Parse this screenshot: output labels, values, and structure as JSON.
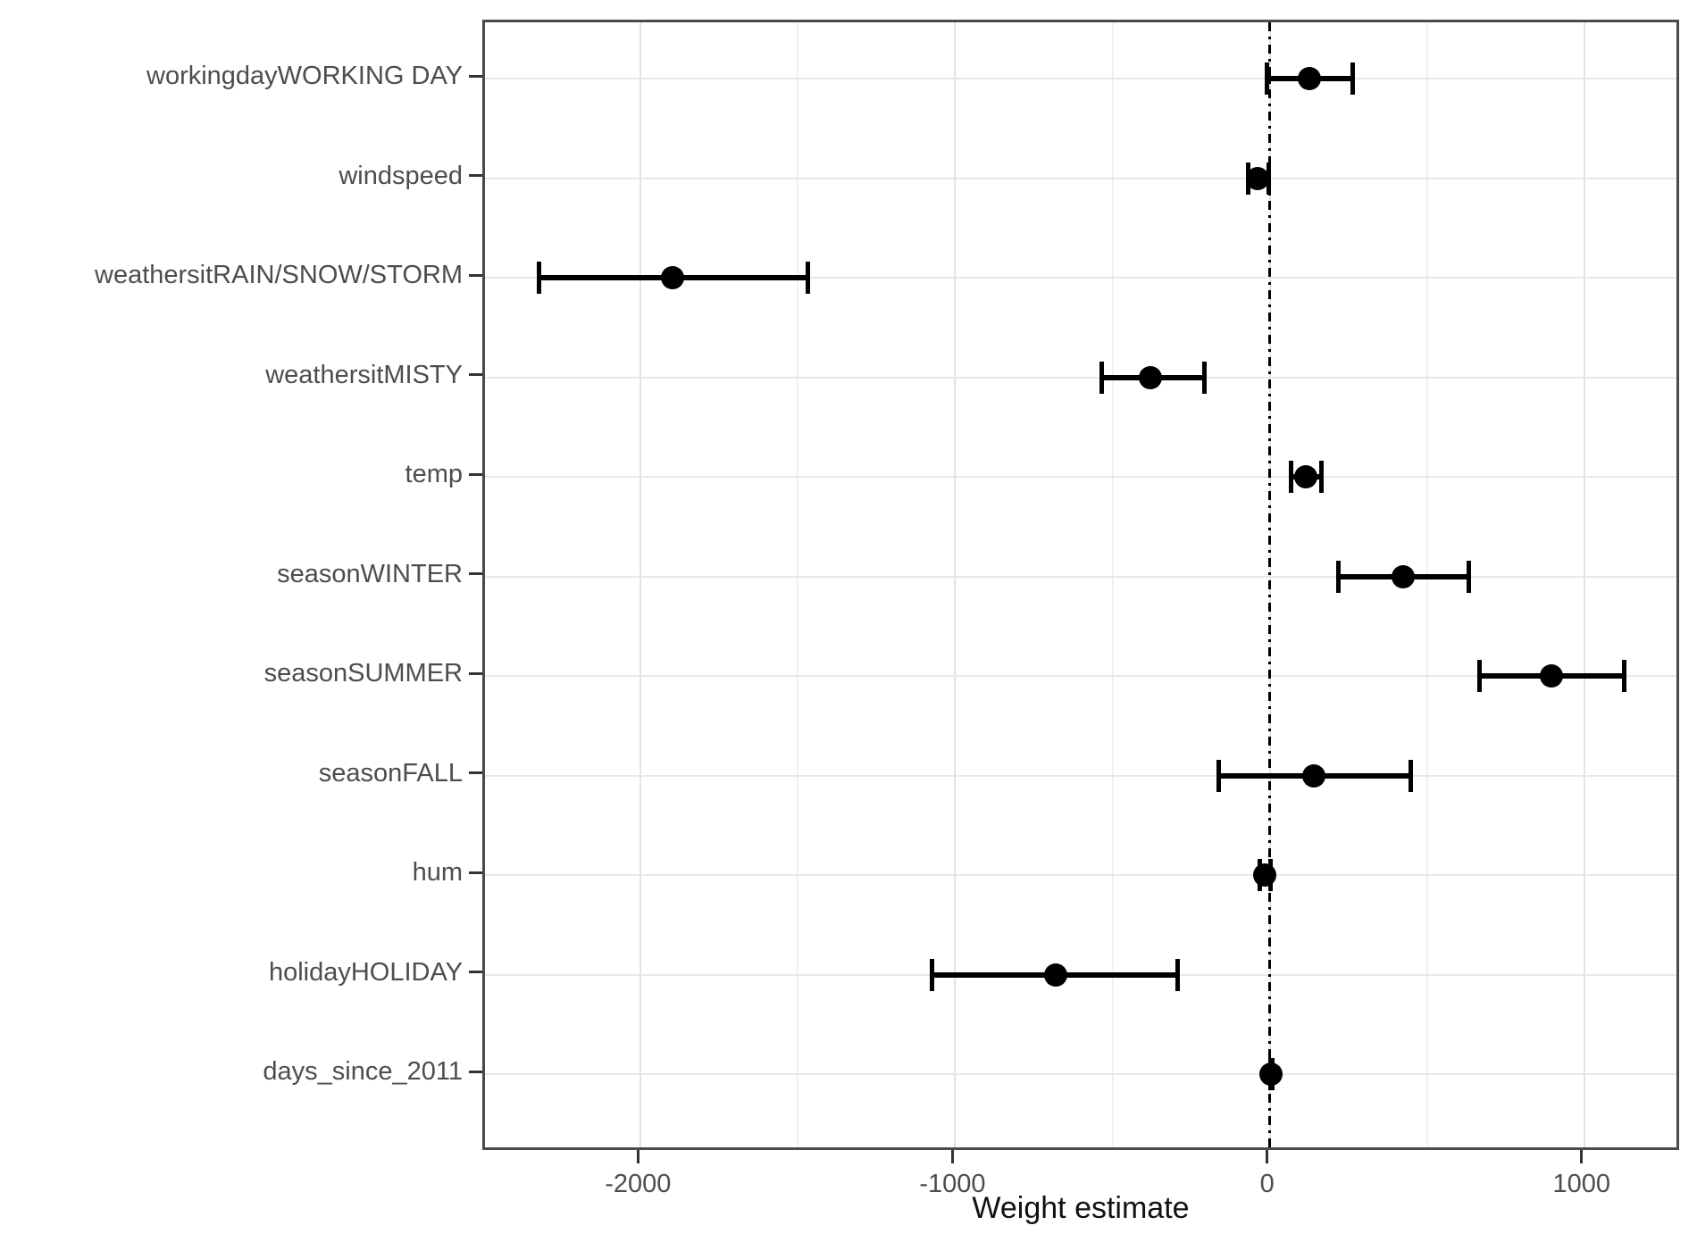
{
  "chart_data": {
    "type": "scatter",
    "variant": "coefficient-forest-plot",
    "title": "",
    "xlabel": "Weight estimate",
    "ylabel": "",
    "xlim": [
      -2495,
      1310
    ],
    "x_major_ticks": [
      -2000,
      -1000,
      0,
      1000
    ],
    "x_tick_labels": [
      "-2000",
      "-1000",
      "0",
      "1000"
    ],
    "x_minor_gridlines": [
      -1500,
      -500,
      500
    ],
    "reference_line": {
      "x": 0,
      "style": "dash-dot",
      "color": "#000000"
    },
    "grid": true,
    "legend_position": "none",
    "categories": [
      "workingdayWORKING DAY",
      "windspeed",
      "weathersitRAIN/SNOW/STORM",
      "weathersitMISTY",
      "temp",
      "seasonWINTER",
      "seasonSUMMER",
      "seasonFALL",
      "hum",
      "holidayHOLIDAY",
      "days_since_2011"
    ],
    "series": [
      {
        "name": "weight_estimate",
        "points": [
          {
            "label": "workingdayWORKING DAY",
            "estimate": 125,
            "ci_low": -15,
            "ci_high": 270
          },
          {
            "label": "windspeed",
            "estimate": -40,
            "ci_low": -75,
            "ci_high": 5
          },
          {
            "label": "weathersitRAIN/SNOW/STORM",
            "estimate": -1900,
            "ci_low": -2330,
            "ci_high": -1460
          },
          {
            "label": "weathersitMISTY",
            "estimate": -380,
            "ci_low": -540,
            "ci_high": -200
          },
          {
            "label": "temp",
            "estimate": 115,
            "ci_low": 60,
            "ci_high": 170
          },
          {
            "label": "seasonWINTER",
            "estimate": 425,
            "ci_low": 210,
            "ci_high": 640
          },
          {
            "label": "seasonSUMMER",
            "estimate": 895,
            "ci_low": 660,
            "ci_high": 1135
          },
          {
            "label": "seasonFALL",
            "estimate": 140,
            "ci_low": -170,
            "ci_high": 455
          },
          {
            "label": "hum",
            "estimate": -15,
            "ci_low": -40,
            "ci_high": 10
          },
          {
            "label": "holidayHOLIDAY",
            "estimate": -680,
            "ci_low": -1080,
            "ci_high": -285
          },
          {
            "label": "days_since_2011",
            "estimate": 5,
            "ci_low": 1,
            "ci_high": 9
          }
        ]
      }
    ]
  },
  "colors": {
    "point": "#000000",
    "error_bar": "#000000",
    "reference_line": "#000000",
    "grid_major": "#e3e3e3",
    "grid_minor": "#f1f1f1",
    "panel_border": "#4a4a4a",
    "tick_mark": "#333333",
    "tick_label": "#4d4d4d",
    "axis_title": "#111111",
    "background": "#ffffff"
  }
}
